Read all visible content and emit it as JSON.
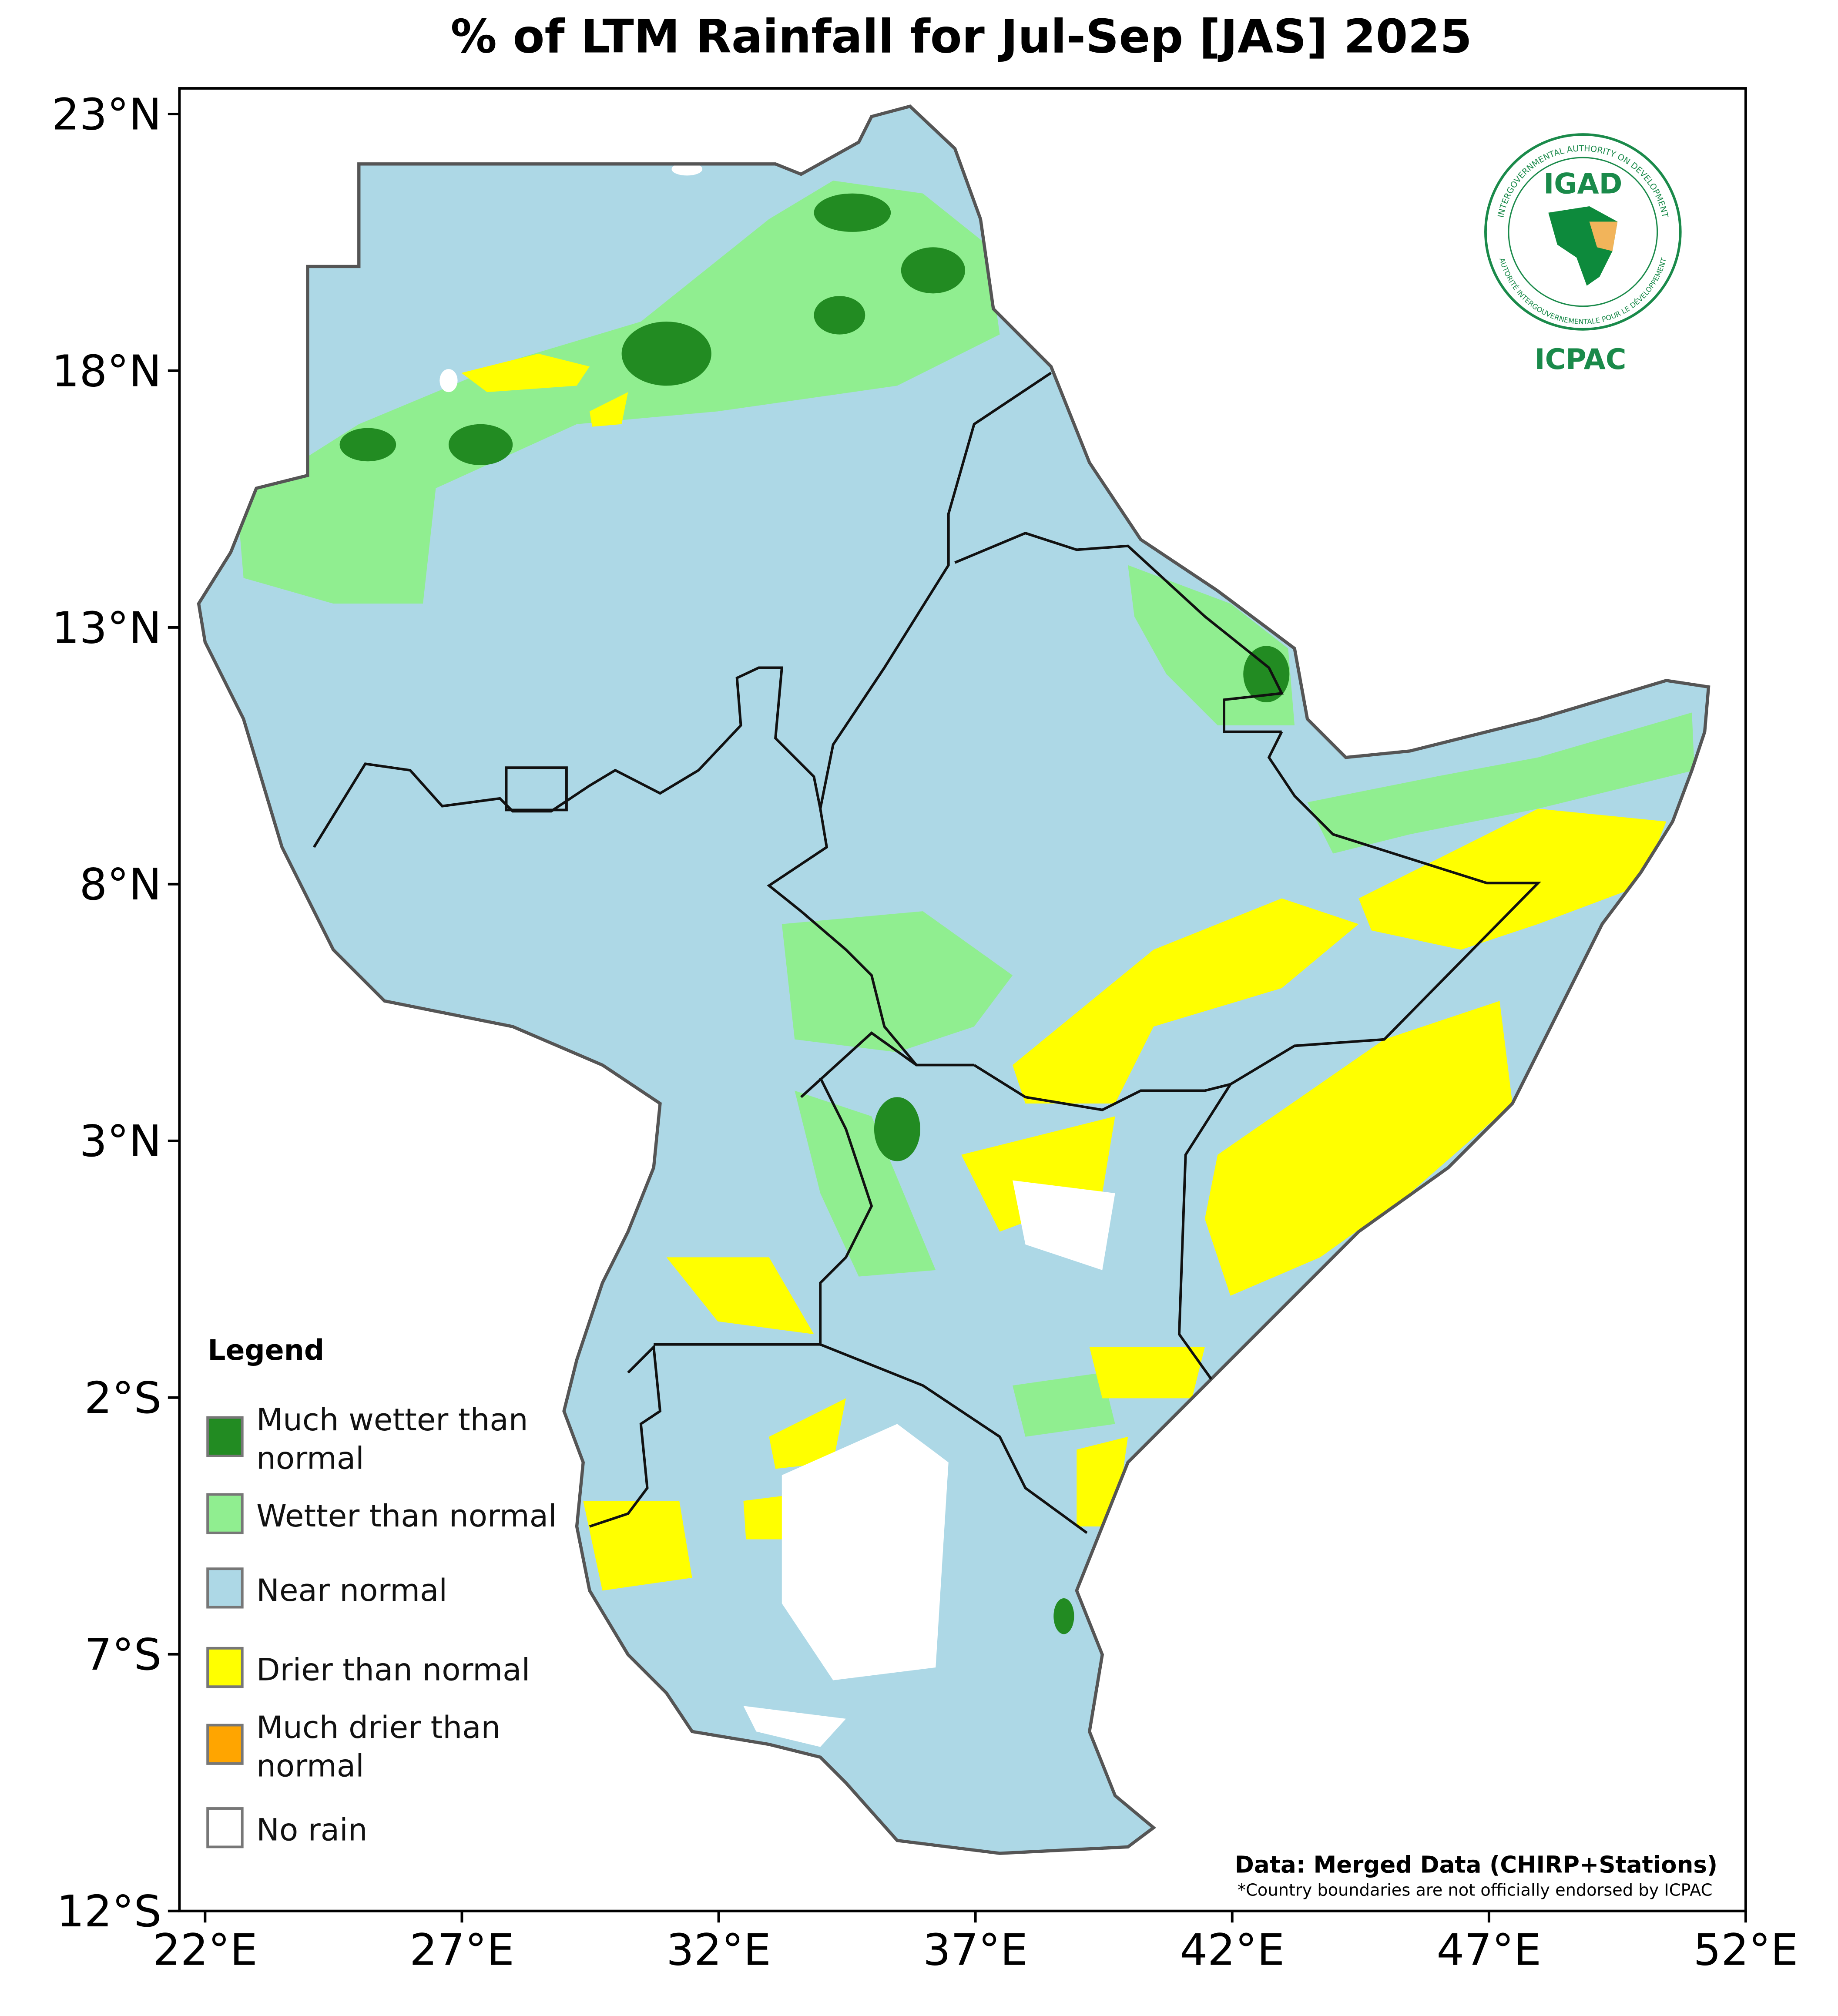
{
  "chart_data": {
    "type": "map",
    "title": "% of LTM Rainfall for Jul-Sep [JAS] 2025",
    "xlim": [
      21.5,
      52
    ],
    "ylim": [
      -12,
      23.5
    ],
    "xticks": [
      {
        "value": 22,
        "label": "22°E"
      },
      {
        "value": 27,
        "label": "27°E"
      },
      {
        "value": 32,
        "label": "32°E"
      },
      {
        "value": 37,
        "label": "37°E"
      },
      {
        "value": 42,
        "label": "42°E"
      },
      {
        "value": 47,
        "label": "47°E"
      },
      {
        "value": 52,
        "label": "52°E"
      }
    ],
    "yticks": [
      {
        "value": 23,
        "label": "23°N"
      },
      {
        "value": 18,
        "label": "18°N"
      },
      {
        "value": 13,
        "label": "13°N"
      },
      {
        "value": 8,
        "label": "8°N"
      },
      {
        "value": 3,
        "label": "3°N"
      },
      {
        "value": -2,
        "label": "2°S"
      },
      {
        "value": -7,
        "label": "7°S"
      },
      {
        "value": -12,
        "label": "12°S"
      }
    ],
    "legend": {
      "title": "Legend",
      "position": "lower left",
      "items": [
        {
          "name": "Much wetter than normal",
          "color": "#228b22"
        },
        {
          "name": "Wetter than normal",
          "color": "#90ee90"
        },
        {
          "name": "Near normal",
          "color": "#add8e6"
        },
        {
          "name": "Drier than normal",
          "color": "#ffff00"
        },
        {
          "name": "Much drier than normal",
          "color": "#ffa500"
        },
        {
          "name": "No rain",
          "color": "#ffffff"
        }
      ]
    },
    "source": "Data: Merged Data (CHIRP+Stations)",
    "footnote": "*Country boundaries are not officially endorsed by ICPAC",
    "logo": {
      "top": "IGAD",
      "bottom": "ICPAC",
      "ring_top": "INTERGOVERNMENTAL AUTHORITY ON DEVELOPMENT",
      "ring_bottom": "AUTORITÉ INTERGOUVERNEMENTALE POUR LE DÉVELOPPEMENT"
    }
  }
}
